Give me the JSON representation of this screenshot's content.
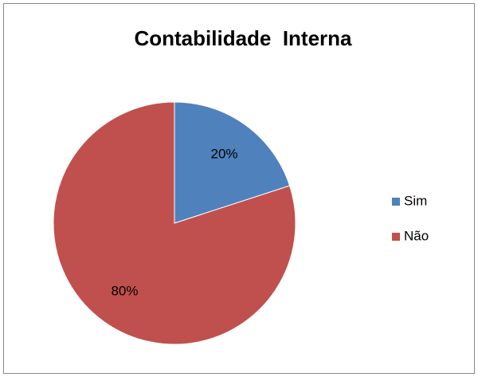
{
  "chart_data": {
    "type": "pie",
    "title": "Contabilidade  Interna",
    "categories": [
      "Sim",
      "Não"
    ],
    "values": [
      20,
      80
    ],
    "value_labels": [
      "20%",
      "80%"
    ],
    "colors": [
      "#4f81bd",
      "#c0504d"
    ],
    "legend": "right"
  }
}
